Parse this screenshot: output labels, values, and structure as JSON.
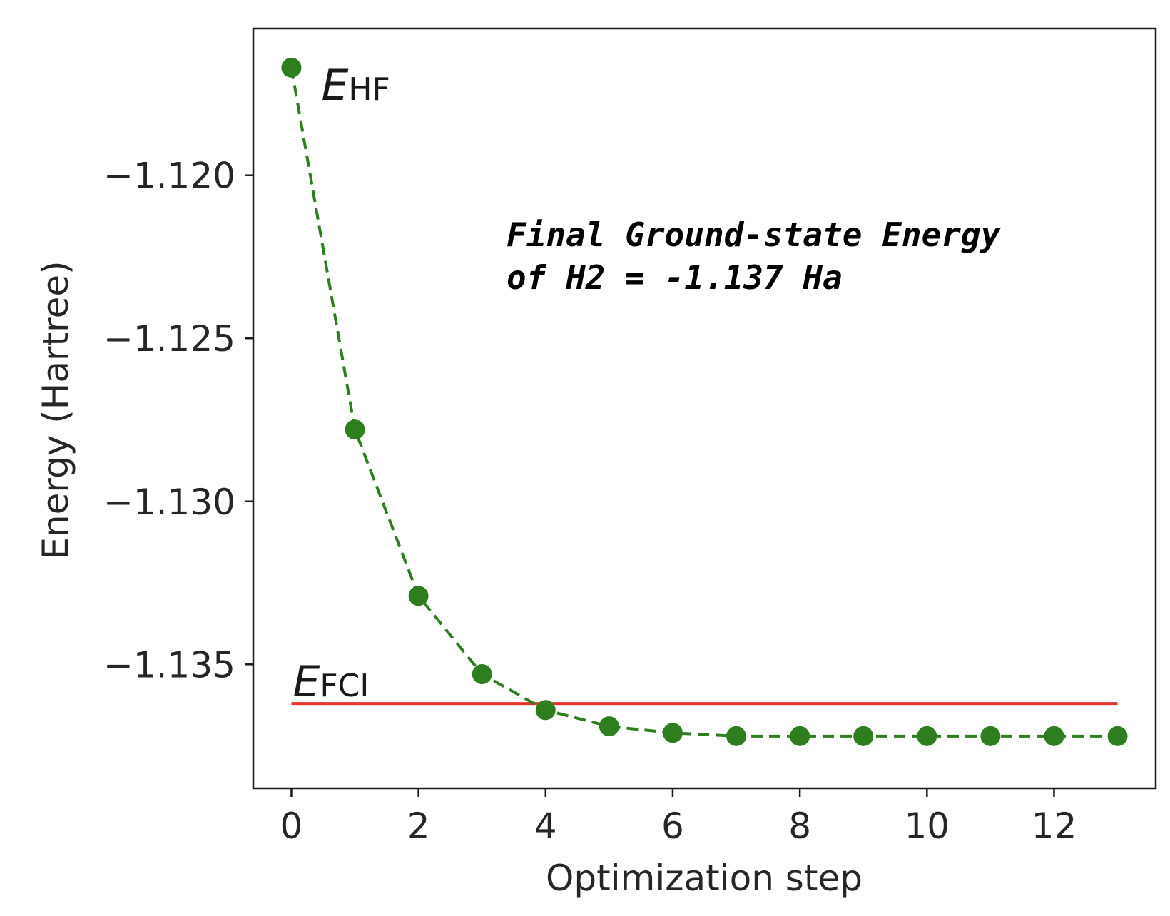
{
  "chart_data": {
    "type": "line",
    "xlabel": "Optimization step",
    "ylabel": "Energy (Hartree)",
    "xlim": [
      -0.6,
      13.6
    ],
    "ylim": [
      -1.1388,
      -1.1155
    ],
    "x_ticks": [
      0,
      2,
      4,
      6,
      8,
      10,
      12
    ],
    "x_tick_labels": [
      "0",
      "2",
      "4",
      "6",
      "8",
      "10",
      "12"
    ],
    "y_ticks": [
      -1.12,
      -1.125,
      -1.13,
      -1.135
    ],
    "y_tick_labels": [
      "−1.120",
      "−1.125",
      "−1.130",
      "−1.135"
    ],
    "grid": false,
    "series": [
      {
        "x": [
          0,
          1,
          2,
          3,
          4,
          5,
          6,
          7,
          8,
          9,
          10,
          11,
          12,
          13
        ],
        "y": [
          -1.1167,
          -1.1278,
          -1.1329,
          -1.1353,
          -1.1364,
          -1.1369,
          -1.1371,
          -1.1372,
          -1.1372,
          -1.1372,
          -1.1372,
          -1.1372,
          -1.1372,
          -1.1372
        ],
        "color": "#2e7d1f",
        "linestyle": "dashed",
        "marker": "circle"
      }
    ],
    "reference_lines": [
      {
        "y": -1.1362,
        "x_range": [
          0,
          13
        ],
        "color": "#e8332a",
        "label_main": "E",
        "label_sub": "FCI"
      }
    ],
    "point_labels": [
      {
        "main": "E",
        "sub": "HF",
        "point_index": 0
      }
    ],
    "annotation": {
      "lines": [
        "Final Ground-state Energy",
        "of H2 = -1.137 Ha"
      ]
    }
  }
}
